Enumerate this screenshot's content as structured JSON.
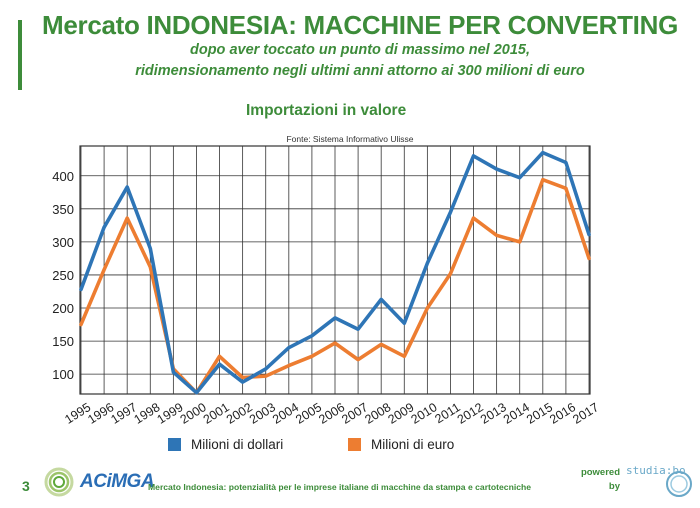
{
  "header": {
    "title": "Mercato INDONESIA: MACCHINE PER CONVERTING",
    "subtitle_line1": "dopo aver toccato un punto di massimo nel 2015,",
    "subtitle_line2": "ridimensionamento negli ultimi anni attorno ai 300 milioni di euro"
  },
  "footer": {
    "page_number": "3",
    "logo_text": "ACiMGA",
    "text": "Mercato Indonesia: potenzialità per le imprese italiane di macchine da stampa e cartotecniche",
    "powered_line1": "powered",
    "powered_line2": "by",
    "partner_text": "studia:bo"
  },
  "chart_data": {
    "type": "line",
    "title": "Importazioni in valore",
    "source": "Fonte: Sistema Informativo Ulisse",
    "x": [
      "1995",
      "1996",
      "1997",
      "1998",
      "1999",
      "2000",
      "2001",
      "2002",
      "2003",
      "2004",
      "2005",
      "2006",
      "2007",
      "2008",
      "2009",
      "2010",
      "2011",
      "2012",
      "2013",
      "2014",
      "2015",
      "2016",
      "2017"
    ],
    "series": [
      {
        "name": "Milioni di dollari",
        "color": "#2e75b6",
        "values": [
          228,
          322,
          383,
          290,
          103,
          72,
          115,
          88,
          108,
          140,
          158,
          185,
          168,
          213,
          177,
          268,
          345,
          430,
          410,
          397,
          435,
          420,
          311
        ]
      },
      {
        "name": "Milioni di euro",
        "color": "#ed7d31",
        "values": [
          175,
          258,
          336,
          262,
          108,
          72,
          127,
          95,
          97,
          113,
          127,
          147,
          122,
          145,
          127,
          200,
          252,
          336,
          310,
          300,
          394,
          381,
          275
        ]
      }
    ],
    "yticks": [
      100,
      150,
      200,
      250,
      300,
      350,
      400
    ],
    "ylim": [
      70,
      445
    ],
    "grid": true,
    "legend_position": "bottom"
  }
}
